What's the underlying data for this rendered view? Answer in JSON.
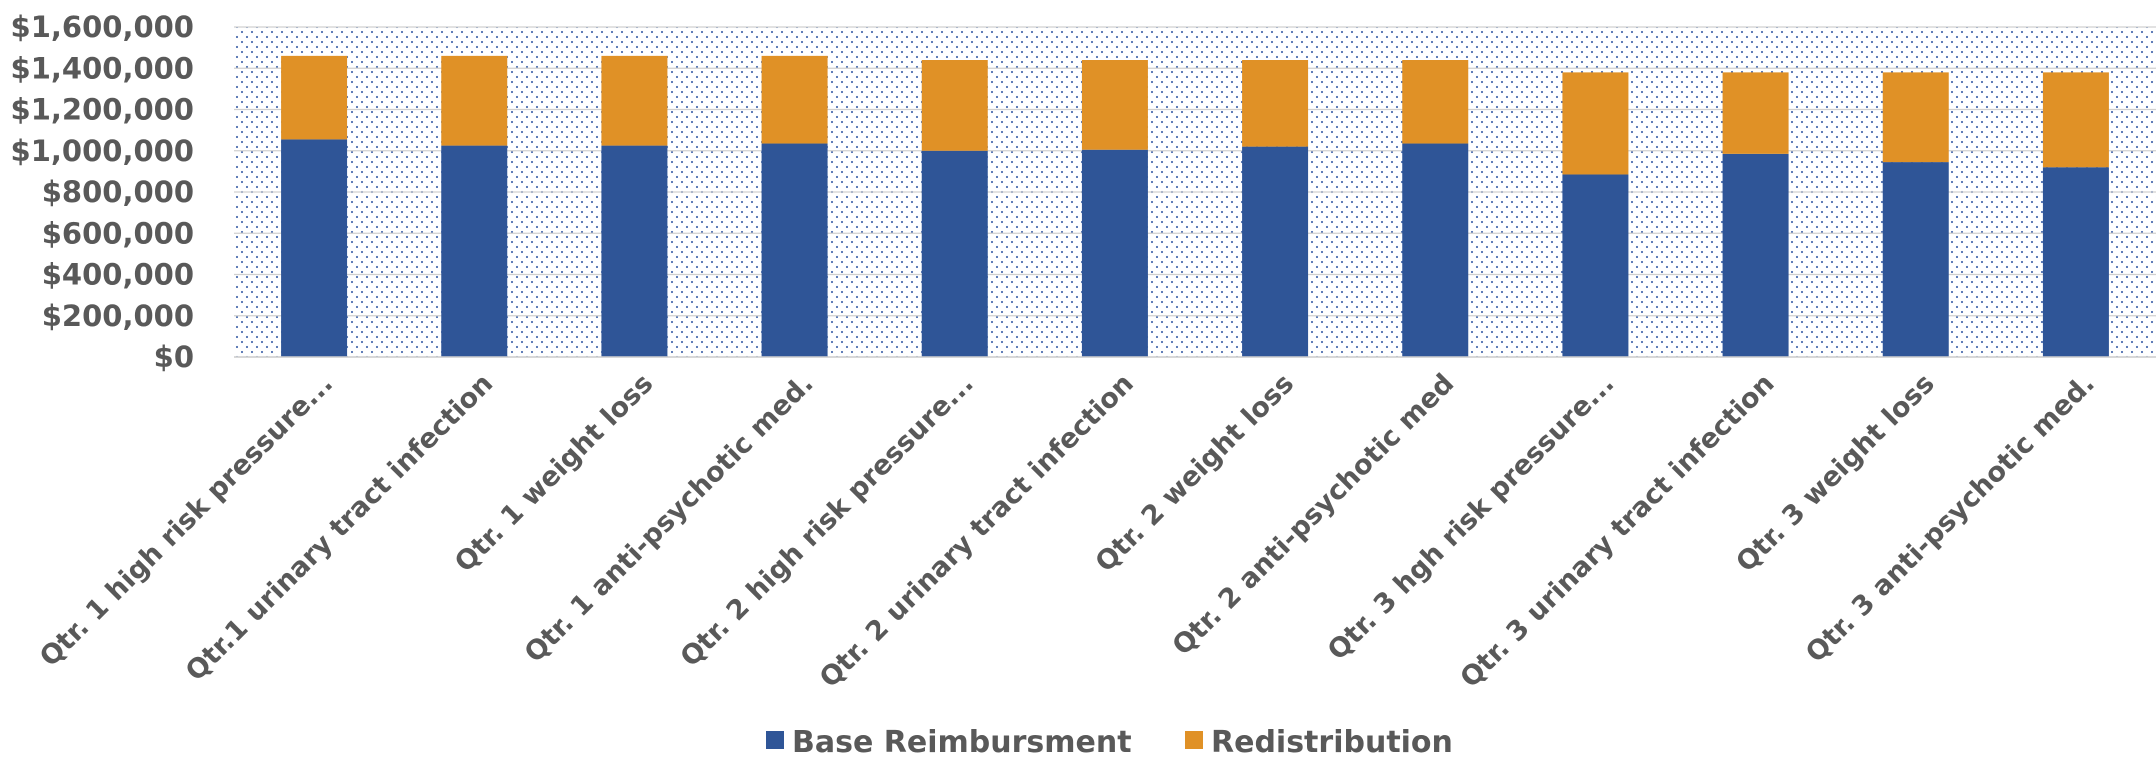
{
  "chart_data": {
    "type": "bar",
    "stacked": true,
    "title": "",
    "xlabel": "",
    "ylabel": "",
    "ylim": [
      0,
      1600000
    ],
    "yticks": [
      0,
      200000,
      400000,
      600000,
      800000,
      1000000,
      1200000,
      1400000,
      1600000
    ],
    "ytick_labels": [
      "$0",
      "$200,000",
      "$400,000",
      "$600,000",
      "$800,000",
      "$1,000,000",
      "$1,200,000",
      "$1,400,000",
      "$1,600,000"
    ],
    "grid": true,
    "legend_position": "bottom",
    "categories": [
      "Qtr. 1 high risk pressure...",
      "Qtr.1 urinary tract infection",
      "Qtr. 1 weight loss",
      "Qtr. 1 anti-psychotic med.",
      "Qtr. 2 high risk pressure...",
      "Qtr. 2 urinary tract infection",
      "Qtr. 2 weight loss",
      "Qtr. 2 anti-psychotic med",
      "Qtr. 3 hgh risk pressure...",
      "Qtr. 3 urinary tract infection",
      "Qtr. 3 weight loss",
      "Qtr. 3 anti-psychotic med."
    ],
    "series": [
      {
        "name": "Base Reimbursment",
        "color": "#2F5597",
        "values": [
          1055000,
          1025000,
          1025000,
          1035000,
          1000000,
          1005000,
          1020000,
          1035000,
          885000,
          985000,
          945000,
          920000
        ]
      },
      {
        "name": "Redistribution",
        "color": "#E09126",
        "values": [
          405000,
          435000,
          435000,
          425000,
          440000,
          435000,
          420000,
          405000,
          495000,
          395000,
          435000,
          460000
        ]
      }
    ]
  }
}
